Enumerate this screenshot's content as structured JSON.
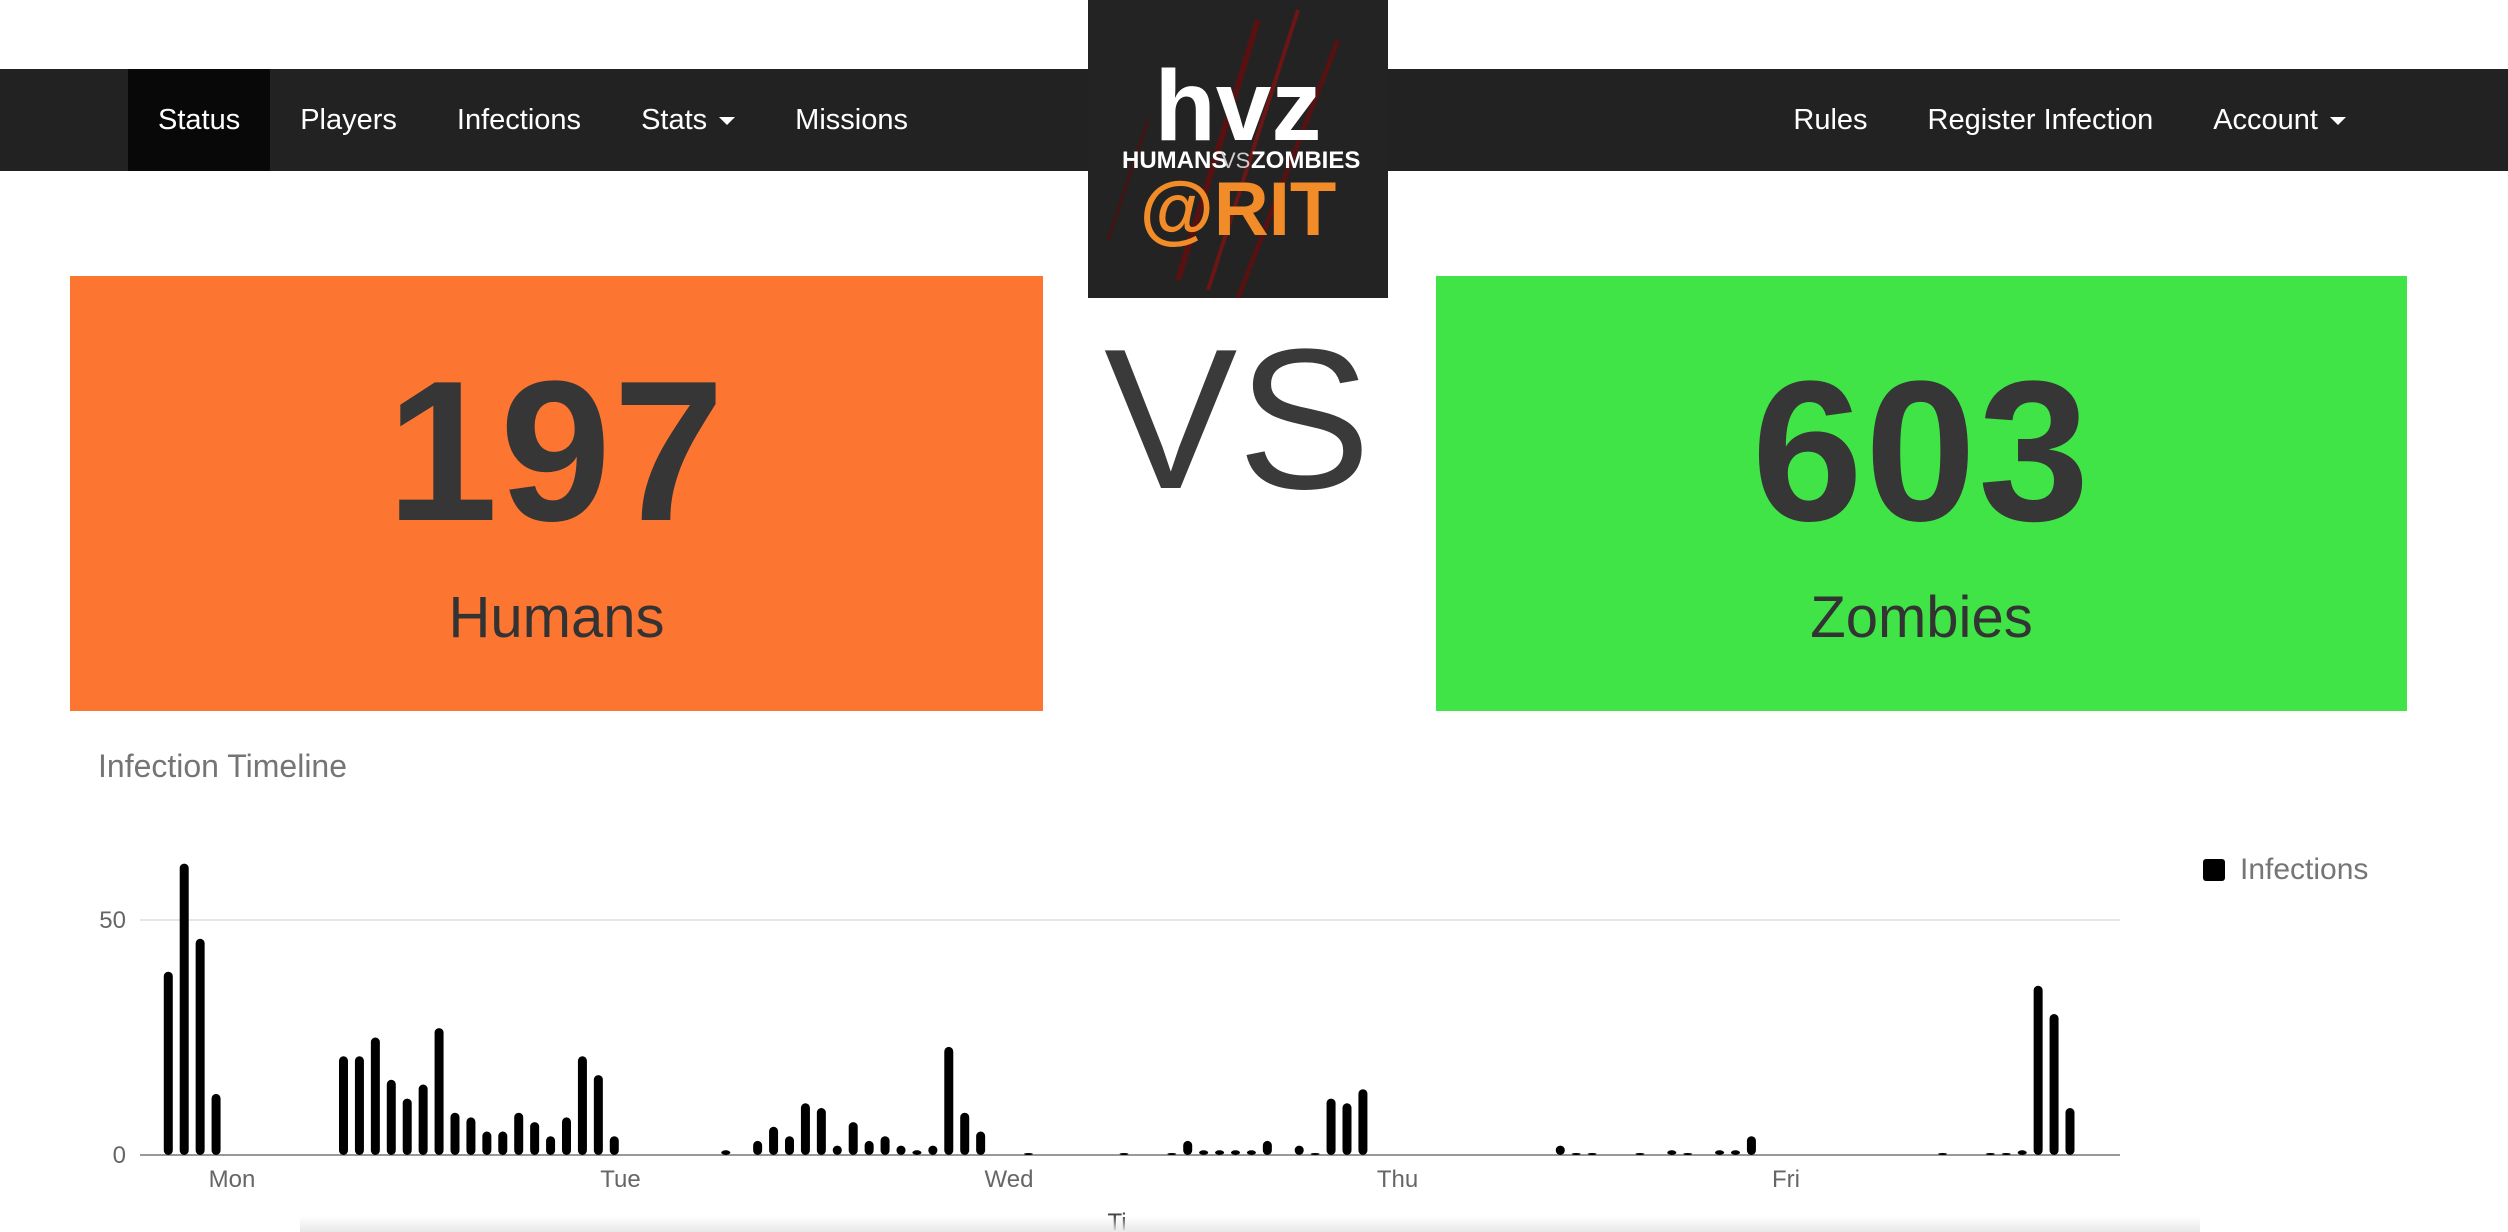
{
  "nav": {
    "left": [
      {
        "label": "Status",
        "active": true
      },
      {
        "label": "Players"
      },
      {
        "label": "Infections"
      },
      {
        "label": "Stats",
        "dropdown": true
      },
      {
        "label": "Missions"
      }
    ],
    "right": [
      {
        "label": "Rules"
      },
      {
        "label": "Register Infection"
      },
      {
        "label": "Account",
        "dropdown": true
      }
    ]
  },
  "logo": {
    "top": "hvz",
    "middle_left": "HUMANS",
    "middle_vs": "VS",
    "middle_right": "ZOMBIES",
    "bottom": "@RIT"
  },
  "scoreboard": {
    "humans": {
      "count": "197",
      "label": "Humans",
      "color": "#fd7631"
    },
    "vs": "VS",
    "zombies": {
      "count": "603",
      "label": "Zombies",
      "color": "#41e447"
    }
  },
  "chart_title": "Infection Timeline",
  "chart_data": {
    "type": "bar",
    "title": "Infection Timeline",
    "xlabel": "Ti",
    "ylabel": "",
    "x_ticks": [
      "Mon",
      "Tue",
      "Wed",
      "Thu",
      "Fri"
    ],
    "y_ticks": [
      0,
      50
    ],
    "ylim": [
      0,
      63
    ],
    "legend": {
      "position": "top-right",
      "entries": [
        "Infections"
      ]
    },
    "series": [
      {
        "name": "Infections",
        "color": "#000000",
        "x": [
          -0.164,
          -0.123,
          -0.082,
          -0.041,
          0.287,
          0.328,
          0.369,
          0.41,
          0.451,
          0.492,
          0.533,
          0.574,
          0.615,
          0.656,
          0.697,
          0.738,
          0.779,
          0.82,
          0.861,
          0.902,
          0.943,
          0.984,
          1.271,
          1.353,
          1.394,
          1.435,
          1.476,
          1.517,
          1.558,
          1.599,
          1.64,
          1.681,
          1.722,
          1.763,
          1.804,
          1.845,
          1.886,
          1.927,
          2.05,
          2.296,
          2.419,
          2.46,
          2.501,
          2.542,
          2.583,
          2.624,
          2.665,
          2.747,
          2.788,
          2.829,
          2.87,
          2.911,
          3.419,
          3.46,
          3.501,
          3.624,
          3.706,
          3.747,
          3.829,
          3.87,
          3.911,
          4.403,
          4.526,
          4.567,
          4.608,
          4.649,
          4.69,
          4.731
        ],
        "values": [
          39,
          62,
          46,
          13,
          21,
          21,
          25,
          16,
          12,
          15,
          27,
          9,
          8,
          5,
          5,
          9,
          7,
          4,
          8,
          21,
          17,
          4,
          1,
          3,
          6,
          4,
          11,
          10,
          2,
          7,
          3,
          4,
          2,
          1,
          2,
          23,
          9,
          5,
          0.4,
          0.4,
          0.4,
          3,
          1,
          1,
          1,
          1,
          3,
          2,
          0.4,
          12,
          11,
          14,
          2,
          0.4,
          0.4,
          0.4,
          1,
          0.4,
          1,
          1,
          4,
          0.4,
          0.4,
          0.4,
          1,
          36,
          30,
          10
        ]
      }
    ]
  }
}
